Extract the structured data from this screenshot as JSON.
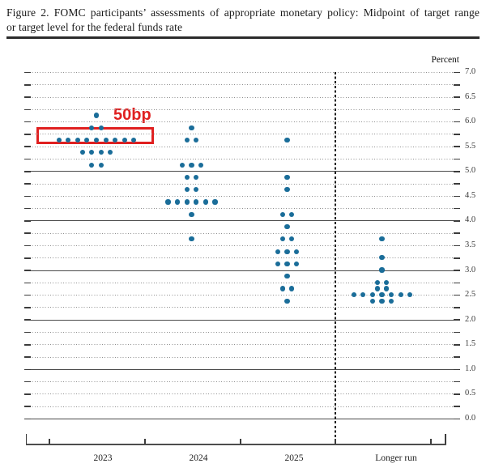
{
  "figure": {
    "title_line1": "Figure 2.  FOMC participants’ assessments of appropriate monetary policy:  Midpoint of target range",
    "title_line2": "or target level for the federal funds rate"
  },
  "chart_data": {
    "type": "scatter",
    "subtype": "fomc-dot-plot",
    "title": "FOMC participants’ assessments of appropriate monetary policy: Midpoint of target range or target level for the federal funds rate",
    "unit_label": "Percent",
    "ylabel": "Percent",
    "ylim": [
      0.0,
      7.0
    ],
    "grid_step": 0.25,
    "tick_label_step": 0.5,
    "solid_line_values": [
      0,
      1,
      2,
      3,
      4,
      5
    ],
    "categories": [
      "2023",
      "2024",
      "2025",
      "Longer run"
    ],
    "separator_before_category": "Longer run",
    "series": [
      {
        "name": "2023",
        "dots": [
          {
            "rate": 6.125,
            "count": 1
          },
          {
            "rate": 5.875,
            "count": 2
          },
          {
            "rate": 5.625,
            "count": 9
          },
          {
            "rate": 5.375,
            "count": 4
          },
          {
            "rate": 5.125,
            "count": 2
          }
        ]
      },
      {
        "name": "2024",
        "dots": [
          {
            "rate": 5.875,
            "count": 1
          },
          {
            "rate": 5.625,
            "count": 2
          },
          {
            "rate": 5.125,
            "count": 3
          },
          {
            "rate": 4.875,
            "count": 2
          },
          {
            "rate": 4.625,
            "count": 2
          },
          {
            "rate": 4.375,
            "count": 6
          },
          {
            "rate": 4.125,
            "count": 1
          },
          {
            "rate": 3.625,
            "count": 1
          }
        ]
      },
      {
        "name": "2025",
        "dots": [
          {
            "rate": 5.625,
            "count": 1
          },
          {
            "rate": 4.875,
            "count": 1
          },
          {
            "rate": 4.625,
            "count": 1
          },
          {
            "rate": 4.125,
            "count": 2
          },
          {
            "rate": 3.875,
            "count": 1
          },
          {
            "rate": 3.625,
            "count": 2
          },
          {
            "rate": 3.375,
            "count": 3
          },
          {
            "rate": 3.125,
            "count": 3
          },
          {
            "rate": 2.875,
            "count": 1
          },
          {
            "rate": 2.625,
            "count": 2
          },
          {
            "rate": 2.375,
            "count": 1
          }
        ]
      },
      {
        "name": "Longer run",
        "dots": [
          {
            "rate": 3.625,
            "count": 1
          },
          {
            "rate": 3.25,
            "count": 1
          },
          {
            "rate": 3.0,
            "count": 1
          },
          {
            "rate": 2.75,
            "count": 2
          },
          {
            "rate": 2.625,
            "count": 2
          },
          {
            "rate": 2.5,
            "count": 7
          },
          {
            "rate": 2.375,
            "count": 3
          }
        ]
      }
    ],
    "annotation": {
      "text": "50bp",
      "color": "#e02020",
      "highlighted_series": "2023",
      "highlighted_rate": 5.625
    },
    "colors": {
      "dot": "#1a6d99",
      "annotation": "#e02020"
    }
  }
}
